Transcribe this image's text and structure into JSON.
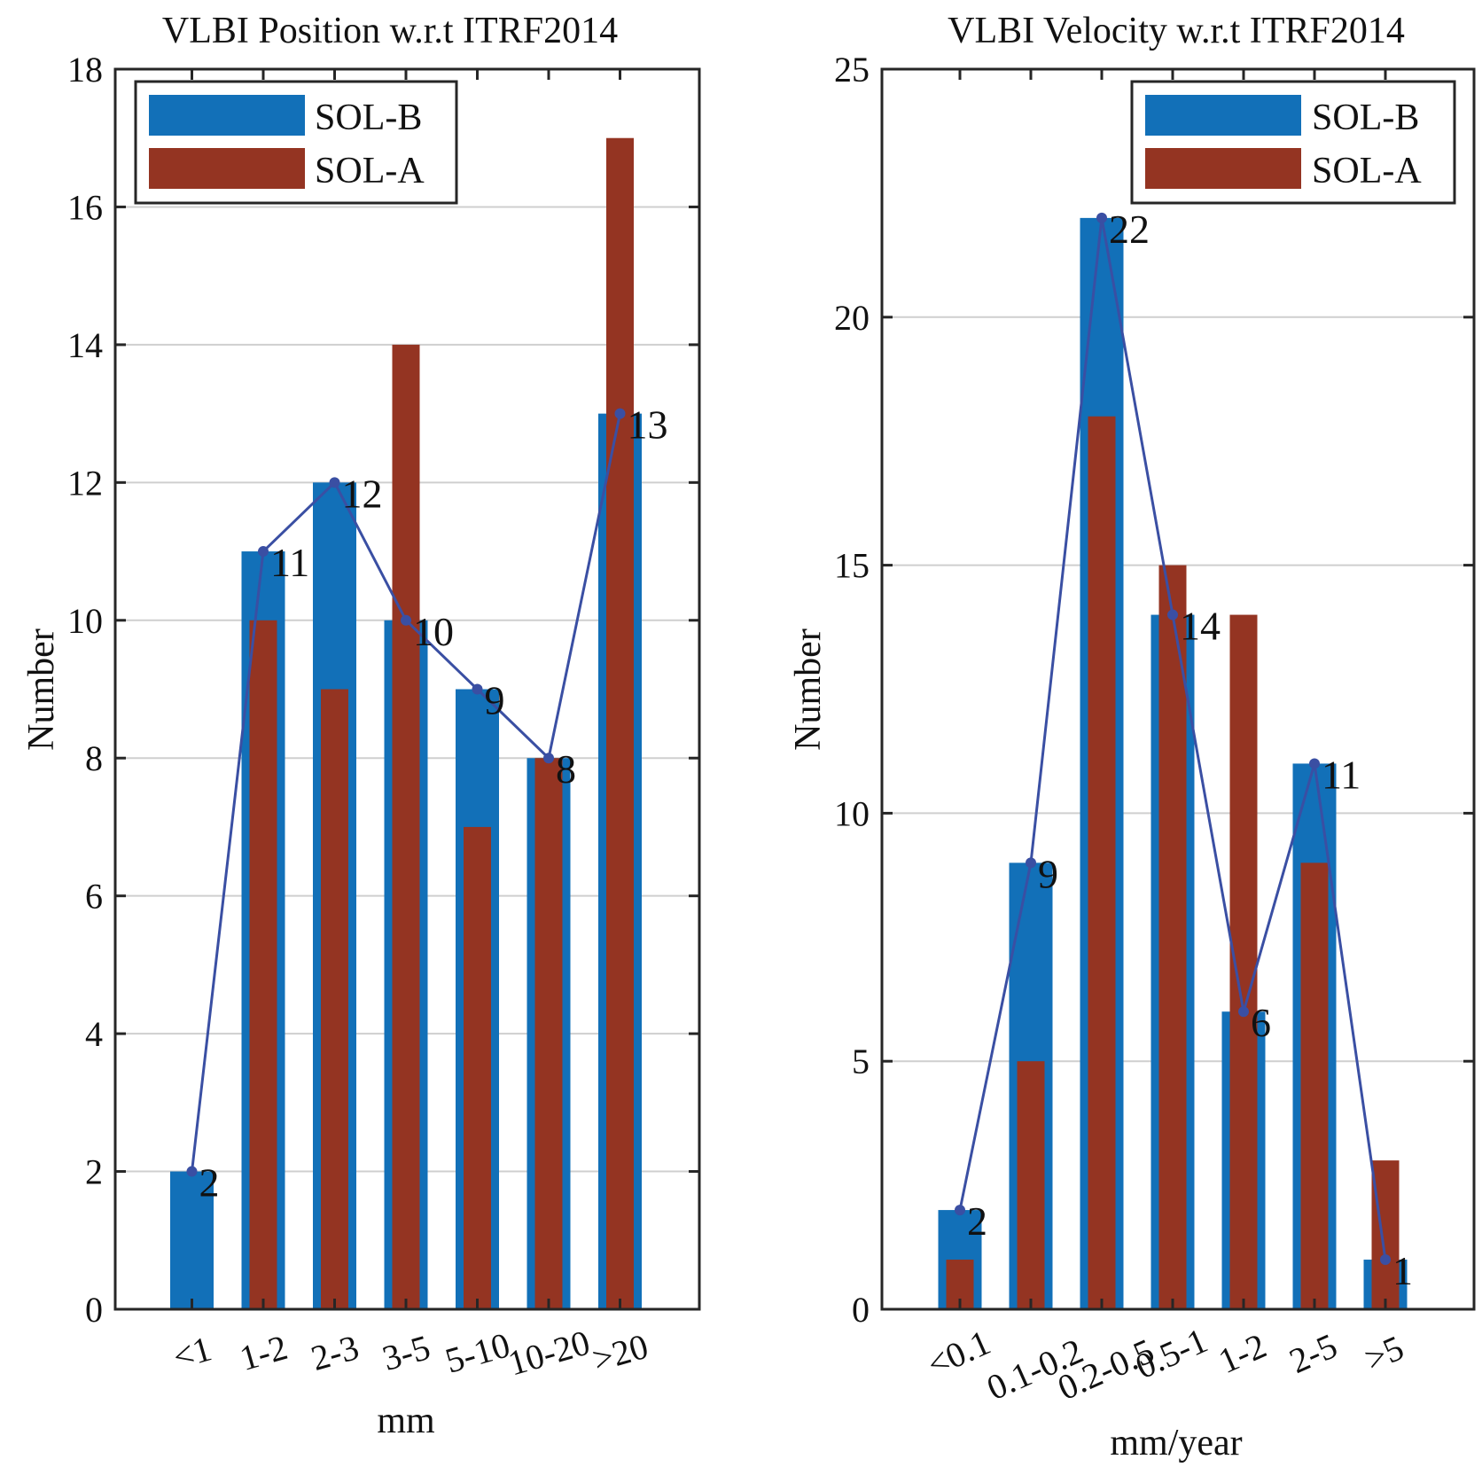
{
  "colors": {
    "sol_b": "#1270b8",
    "sol_a": "#943422",
    "line": "#3a4fa3",
    "grid": "#cfcfcf",
    "axis": "#262626"
  },
  "chart_data": [
    {
      "type": "bar",
      "title": "VLBI Position w.r.t ITRF2014",
      "xlabel": "mm",
      "ylabel": "Number",
      "categories": [
        "<1",
        "1-2",
        "2-3",
        "3-5",
        "5-10",
        "10-20",
        ">20"
      ],
      "ylim": [
        0,
        18
      ],
      "yticks": [
        0,
        2,
        4,
        6,
        8,
        10,
        12,
        14,
        16,
        18
      ],
      "grid": true,
      "legend_position": "top-left",
      "series": [
        {
          "name": "SOL-B",
          "values": [
            2,
            11,
            12,
            10,
            9,
            8,
            13
          ]
        },
        {
          "name": "SOL-A",
          "values": [
            0,
            10,
            9,
            14,
            7,
            8,
            17
          ]
        }
      ],
      "line_series": {
        "based_on": "SOL-B",
        "values": [
          2,
          11,
          12,
          10,
          9,
          8,
          13
        ]
      },
      "data_labels": [
        "2",
        "11",
        "12",
        "10",
        "9",
        "8",
        "13"
      ]
    },
    {
      "type": "bar",
      "title": "VLBI Velocity w.r.t ITRF2014",
      "xlabel": "mm/year",
      "ylabel": "Number",
      "categories": [
        "<0.1",
        "0.1-0.2",
        "0.2-0.5",
        "0.5-1",
        "1-2",
        "2-5",
        ">5"
      ],
      "ylim": [
        0,
        25
      ],
      "yticks": [
        0,
        5,
        10,
        15,
        20,
        25
      ],
      "grid": true,
      "legend_position": "top-right",
      "series": [
        {
          "name": "SOL-B",
          "values": [
            2,
            9,
            22,
            14,
            6,
            11,
            1
          ]
        },
        {
          "name": "SOL-A",
          "values": [
            1,
            5,
            18,
            15,
            14,
            9,
            3
          ]
        }
      ],
      "line_series": {
        "based_on": "SOL-B",
        "values": [
          2,
          9,
          22,
          14,
          6,
          11,
          1
        ]
      },
      "data_labels": [
        "2",
        "9",
        "22",
        "14",
        "6",
        "11",
        "1"
      ]
    }
  ]
}
